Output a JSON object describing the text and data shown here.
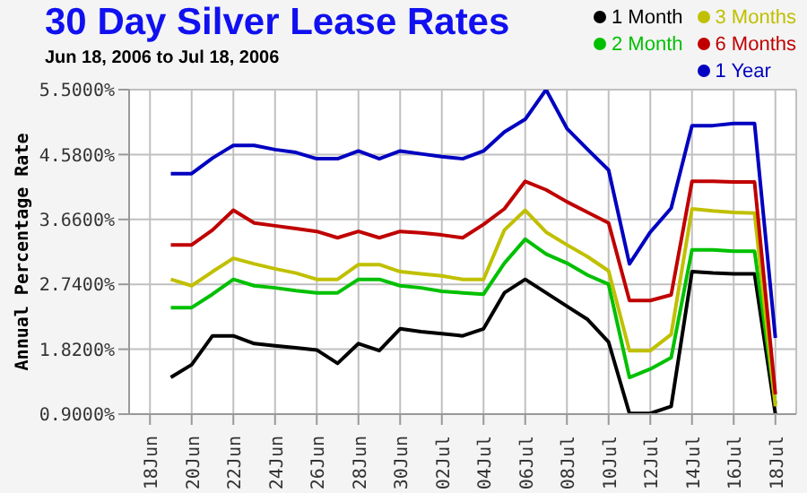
{
  "chart_data": {
    "type": "line",
    "title": "30 Day Silver Lease Rates",
    "subtitle": "Jun 18, 2006 to Jul 18, 2006",
    "ylabel": "Annual Percentage Rate",
    "x": [
      "2006-06-19",
      "2006-06-20",
      "2006-06-21",
      "2006-06-22",
      "2006-06-23",
      "2006-06-24",
      "2006-06-25",
      "2006-06-26",
      "2006-06-27",
      "2006-06-28",
      "2006-06-29",
      "2006-06-30",
      "2006-07-01",
      "2006-07-02",
      "2006-07-03",
      "2006-07-04",
      "2006-07-05",
      "2006-07-06",
      "2006-07-07",
      "2006-07-08",
      "2006-07-09",
      "2006-07-10",
      "2006-07-11",
      "2006-07-12",
      "2006-07-13",
      "2006-07-14",
      "2006-07-15",
      "2006-07-16",
      "2006-07-17",
      "2006-07-18"
    ],
    "series": [
      {
        "name": "1 Month",
        "color": "#000000",
        "values": [
          1.42,
          1.6,
          2.01,
          2.01,
          1.9,
          1.87,
          1.84,
          1.81,
          1.62,
          1.9,
          1.8,
          2.11,
          2.07,
          2.04,
          2.01,
          2.11,
          2.62,
          2.81,
          2.62,
          2.43,
          2.24,
          1.92,
          0.91,
          0.91,
          1.01,
          2.92,
          2.9,
          2.89,
          2.89,
          0.9
        ]
      },
      {
        "name": "2 Month",
        "color": "#00c000",
        "values": [
          2.41,
          2.41,
          2.6,
          2.81,
          2.72,
          2.69,
          2.65,
          2.62,
          2.62,
          2.81,
          2.81,
          2.72,
          2.69,
          2.64,
          2.62,
          2.6,
          3.04,
          3.38,
          3.17,
          3.04,
          2.87,
          2.74,
          1.42,
          1.54,
          1.7,
          3.23,
          3.23,
          3.21,
          3.21,
          1.05
        ]
      },
      {
        "name": "3 Months",
        "color": "#c0c000",
        "values": [
          2.81,
          2.72,
          2.92,
          3.11,
          3.03,
          2.96,
          2.9,
          2.81,
          2.81,
          3.02,
          3.02,
          2.92,
          2.89,
          2.86,
          2.81,
          2.81,
          3.51,
          3.79,
          3.48,
          3.3,
          3.13,
          2.93,
          1.8,
          1.8,
          2.03,
          3.81,
          3.78,
          3.76,
          3.75,
          1.01
        ]
      },
      {
        "name": "6 Months",
        "color": "#c00000",
        "values": [
          3.3,
          3.3,
          3.51,
          3.79,
          3.61,
          3.57,
          3.53,
          3.49,
          3.4,
          3.49,
          3.4,
          3.49,
          3.47,
          3.44,
          3.4,
          3.59,
          3.81,
          4.2,
          4.08,
          3.91,
          3.76,
          3.61,
          2.51,
          2.51,
          2.59,
          4.2,
          4.2,
          4.19,
          4.19,
          1.18
        ]
      },
      {
        "name": "1 Year",
        "color": "#0000c0",
        "values": [
          4.31,
          4.31,
          4.53,
          4.71,
          4.71,
          4.65,
          4.61,
          4.52,
          4.52,
          4.63,
          4.52,
          4.63,
          4.59,
          4.55,
          4.52,
          4.63,
          4.9,
          5.08,
          5.5,
          4.95,
          4.65,
          4.36,
          3.03,
          3.48,
          3.82,
          4.99,
          4.99,
          5.02,
          5.02,
          1.98
        ]
      }
    ],
    "xlim": [
      "2006-06-17",
      "2006-07-19"
    ],
    "xticks": [
      {
        "value": "2006-06-18",
        "label": "18Jun"
      },
      {
        "value": "2006-06-20",
        "label": "20Jun"
      },
      {
        "value": "2006-06-22",
        "label": "22Jun"
      },
      {
        "value": "2006-06-24",
        "label": "24Jun"
      },
      {
        "value": "2006-06-26",
        "label": "26Jun"
      },
      {
        "value": "2006-06-28",
        "label": "28Jun"
      },
      {
        "value": "2006-06-30",
        "label": "30Jun"
      },
      {
        "value": "2006-07-02",
        "label": "02Jul"
      },
      {
        "value": "2006-07-04",
        "label": "04Jul"
      },
      {
        "value": "2006-07-06",
        "label": "06Jul"
      },
      {
        "value": "2006-07-08",
        "label": "08Jul"
      },
      {
        "value": "2006-07-10",
        "label": "10Jul"
      },
      {
        "value": "2006-07-12",
        "label": "12Jul"
      },
      {
        "value": "2006-07-14",
        "label": "14Jul"
      },
      {
        "value": "2006-07-16",
        "label": "16Jul"
      },
      {
        "value": "2006-07-18",
        "label": "18Jul"
      }
    ],
    "ylim": [
      0.9,
      5.5
    ],
    "yticks": [
      {
        "value": 0.9,
        "label": "0.9000%"
      },
      {
        "value": 1.82,
        "label": "1.8200%"
      },
      {
        "value": 2.74,
        "label": "2.7400%"
      },
      {
        "value": 3.66,
        "label": "3.6600%"
      },
      {
        "value": 4.58,
        "label": "4.5800%"
      },
      {
        "value": 5.5,
        "label": "5.5000%"
      }
    ],
    "grid": true,
    "legend": "top right"
  }
}
